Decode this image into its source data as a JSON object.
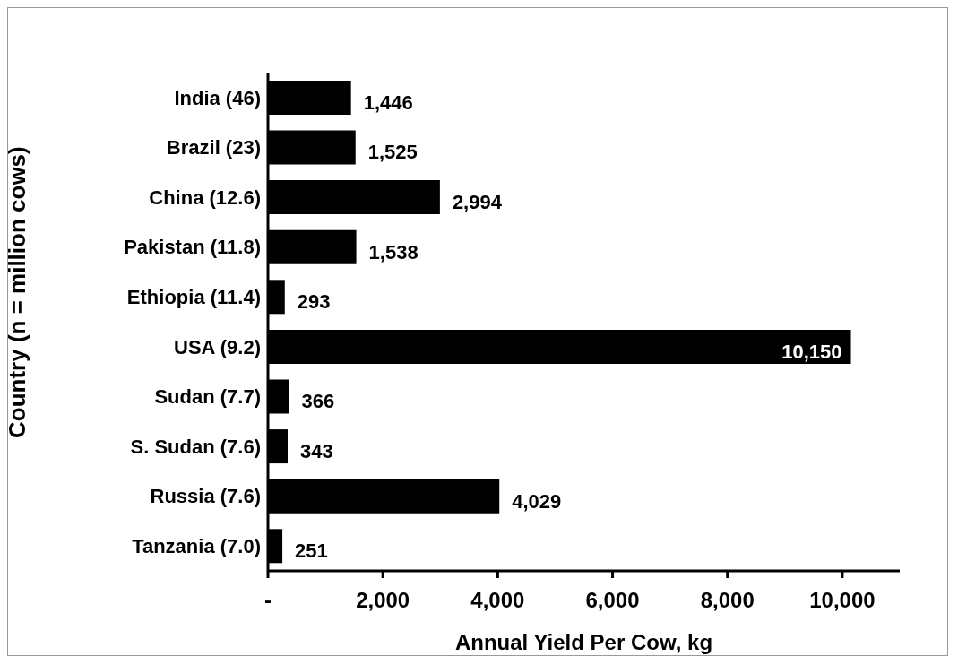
{
  "chart_data": {
    "type": "bar",
    "orientation": "horizontal",
    "xlabel": "Annual Yield Per Cow, kg",
    "ylabel": "Country (n = million cows)",
    "categories": [
      "India (46)",
      "Brazil (23)",
      "China (12.6)",
      "Pakistan (11.8)",
      "Ethiopia (11.4)",
      "USA (9.2)",
      "Sudan (7.7)",
      "S. Sudan (7.6)",
      "Russia (7.6)",
      "Tanzania (7.0)"
    ],
    "values": [
      1446,
      1525,
      2994,
      1538,
      293,
      10150,
      366,
      343,
      4029,
      251
    ],
    "value_labels": [
      "1,446",
      "1,525",
      "2,994",
      "1,538",
      "293",
      "10,150",
      "366",
      "343",
      "4,029",
      "251"
    ],
    "color": "#000000",
    "xlim": [
      0,
      11000
    ],
    "xticks": [
      {
        "value": 0,
        "label": "-"
      },
      {
        "value": 2000,
        "label": "2,000"
      },
      {
        "value": 4000,
        "label": "4,000"
      },
      {
        "value": 6000,
        "label": "6,000"
      },
      {
        "value": 8000,
        "label": "8,000"
      },
      {
        "value": 10000,
        "label": "10,000"
      }
    ],
    "grid": false,
    "legend": false
  }
}
